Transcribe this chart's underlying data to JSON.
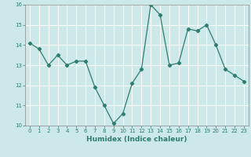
{
  "x": [
    0,
    1,
    2,
    3,
    4,
    5,
    6,
    7,
    8,
    9,
    10,
    11,
    12,
    13,
    14,
    15,
    16,
    17,
    18,
    19,
    20,
    21,
    22,
    23
  ],
  "y": [
    14.1,
    13.8,
    13.0,
    13.5,
    13.0,
    13.2,
    13.2,
    11.9,
    11.0,
    10.1,
    10.6,
    12.1,
    12.8,
    16.0,
    15.5,
    13.0,
    13.1,
    14.8,
    14.7,
    15.0,
    14.0,
    12.8,
    12.5,
    12.2
  ],
  "xlabel": "Humidex (Indice chaleur)",
  "ylim": [
    10,
    16
  ],
  "xlim": [
    -0.5,
    23.5
  ],
  "yticks": [
    10,
    11,
    12,
    13,
    14,
    15,
    16
  ],
  "xticks": [
    0,
    1,
    2,
    3,
    4,
    5,
    6,
    7,
    8,
    9,
    10,
    11,
    12,
    13,
    14,
    15,
    16,
    17,
    18,
    19,
    20,
    21,
    22,
    23
  ],
  "line_color": "#2e7d6e",
  "marker": "D",
  "marker_size": 2.2,
  "bg_color": "#cce8e8",
  "grid_color": "#ffffff",
  "tick_fontsize": 5.0,
  "xlabel_fontsize": 6.5,
  "linewidth": 0.9
}
